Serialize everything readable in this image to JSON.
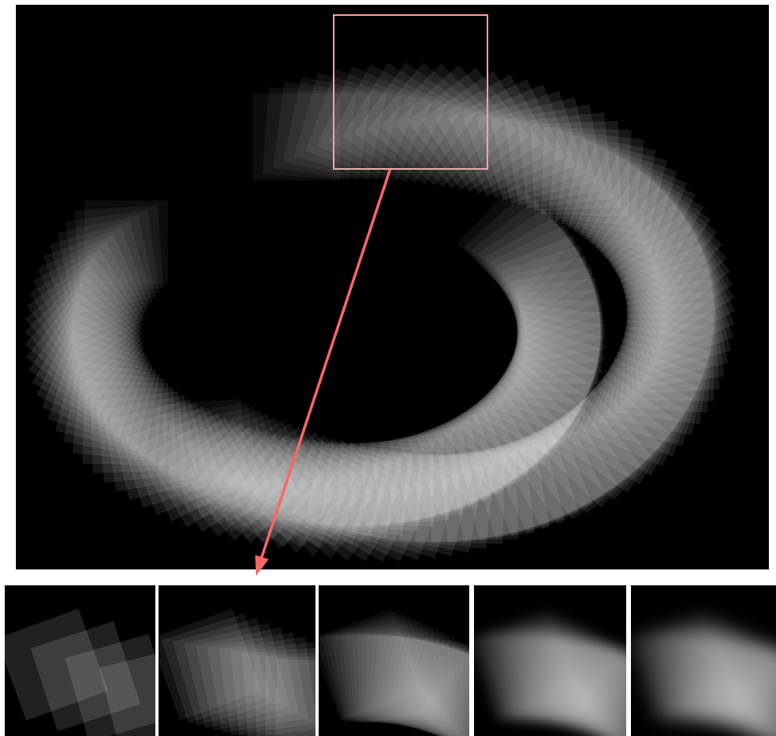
{
  "figure": {
    "background_color": "#000000",
    "square_color": "#ffffff",
    "highlight_color": "#ff6b6b",
    "zoom_box_color": "#f0a899",
    "arrow_color": "#ff6666",
    "selected_thumbnail_index": 1,
    "thumbnails": [
      {
        "name": "thumbnail-sparse",
        "style": "sparse"
      },
      {
        "name": "thumbnail-medium",
        "style": "medium"
      },
      {
        "name": "thumbnail-dense",
        "style": "dense"
      },
      {
        "name": "thumbnail-smooth",
        "style": "smooth"
      },
      {
        "name": "thumbnail-smoothest",
        "style": "smoothest"
      }
    ]
  }
}
